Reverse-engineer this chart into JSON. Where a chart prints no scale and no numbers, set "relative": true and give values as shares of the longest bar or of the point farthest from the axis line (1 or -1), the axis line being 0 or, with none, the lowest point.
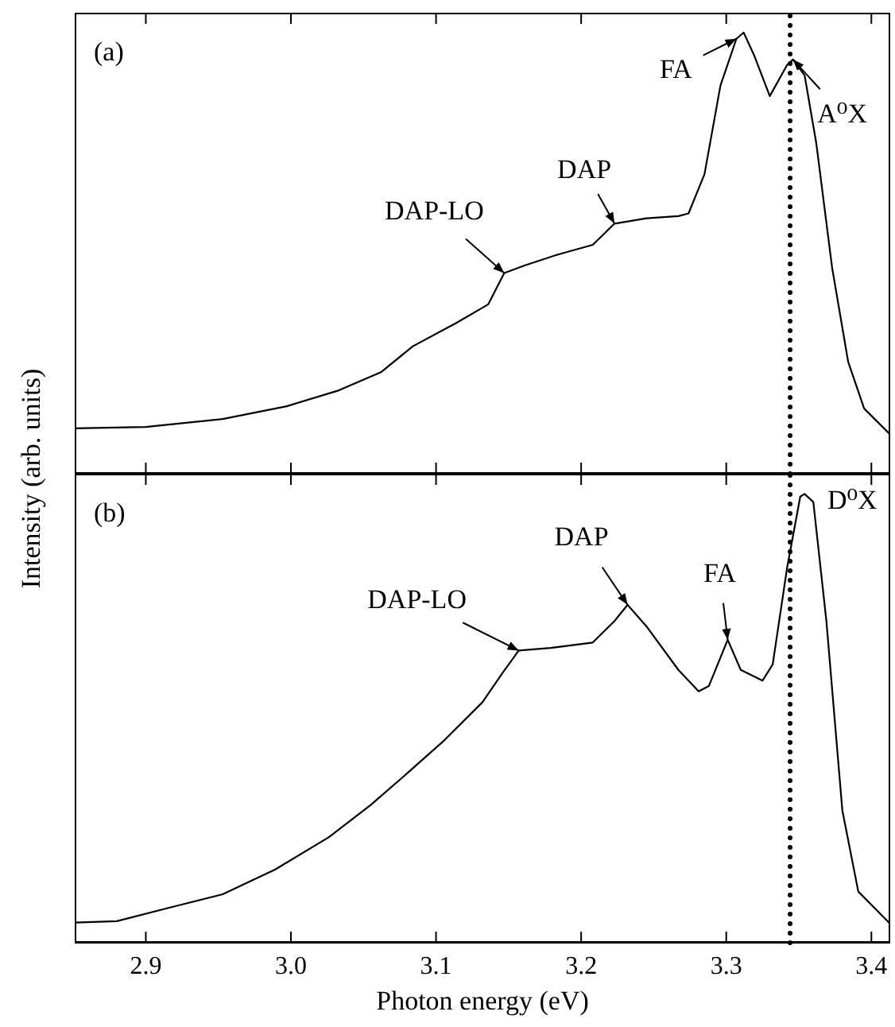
{
  "chart_data": [
    {
      "type": "line",
      "relative": true,
      "ylabel": "Intensity (arb. units)",
      "xlim": [
        2.851,
        3.413
      ],
      "xticks": [
        2.9,
        3.0,
        3.1,
        3.2,
        3.3,
        3.4
      ],
      "tick_labels": false,
      "marker": "none",
      "line_style": "solid",
      "series": [
        {
          "color": "#000000",
          "x": [
            2.851,
            2.9,
            2.953,
            2.997,
            3.033,
            3.062,
            3.084,
            3.114,
            3.136,
            3.147,
            3.161,
            3.183,
            3.208,
            3.223,
            3.245,
            3.267,
            3.274,
            3.285,
            3.296,
            3.307,
            3.312,
            3.319,
            3.33,
            3.342,
            3.346,
            3.354,
            3.362,
            3.373,
            3.384,
            3.395,
            3.413
          ],
          "values": [
            0.103,
            0.106,
            0.124,
            0.153,
            0.189,
            0.23,
            0.289,
            0.342,
            0.384,
            0.455,
            0.472,
            0.496,
            0.519,
            0.567,
            0.579,
            0.584,
            0.59,
            0.679,
            0.88,
            0.986,
            1.0,
            0.95,
            0.856,
            0.927,
            0.939,
            0.903,
            0.75,
            0.466,
            0.254,
            0.148,
            0.089
          ]
        }
      ],
      "ref_lines": [
        {
          "axis": "x",
          "value": 3.344,
          "line_style": "dotted",
          "color": "#000000"
        }
      ],
      "annotations": [
        "(a)",
        {
          "text": "DAP-LO",
          "x": 3.147,
          "y": 0.455
        },
        {
          "text": "DAP",
          "x": 3.223,
          "y": 0.567
        },
        {
          "text": "FA",
          "x": 3.307,
          "y": 0.986
        },
        {
          "text": "A⁰X",
          "x": 3.346,
          "y": 0.939
        }
      ]
    },
    {
      "type": "line",
      "relative": true,
      "xlabel": "Photon energy (eV)",
      "xlim": [
        2.851,
        3.413
      ],
      "xticks": [
        2.9,
        {
          "value": 3.0,
          "label": "3.0"
        },
        3.1,
        3.2,
        3.3,
        3.4
      ],
      "tick_labels": "x",
      "marker": "none",
      "line_style": "solid",
      "series": [
        {
          "color": "#000000",
          "x": [
            2.851,
            2.88,
            2.916,
            2.953,
            2.989,
            3.026,
            3.055,
            3.081,
            3.106,
            3.132,
            3.146,
            3.157,
            3.179,
            3.208,
            3.223,
            3.232,
            3.245,
            3.267,
            3.281,
            3.288,
            3.301,
            3.31,
            3.325,
            3.332,
            3.342,
            3.351,
            3.354,
            3.36,
            3.369,
            3.38,
            3.391,
            3.413
          ],
          "values": [
            0.045,
            0.048,
            0.078,
            0.108,
            0.163,
            0.235,
            0.307,
            0.38,
            0.452,
            0.536,
            0.602,
            0.651,
            0.657,
            0.669,
            0.717,
            0.753,
            0.705,
            0.608,
            0.56,
            0.572,
            0.675,
            0.608,
            0.584,
            0.62,
            0.837,
            0.994,
            1.0,
            0.982,
            0.717,
            0.295,
            0.114,
            0.042
          ]
        }
      ],
      "ref_lines": [
        {
          "axis": "x",
          "value": 3.344,
          "line_style": "dotted",
          "color": "#000000"
        }
      ],
      "annotations": [
        "(b)",
        {
          "text": "DAP-LO",
          "x": 3.157,
          "y": 0.651
        },
        {
          "text": "DAP",
          "x": 3.232,
          "y": 0.753
        },
        {
          "text": "FA",
          "x": 3.301,
          "y": 0.675
        },
        {
          "text": "D⁰X",
          "x": 3.354,
          "y": 1.0
        }
      ]
    }
  ]
}
